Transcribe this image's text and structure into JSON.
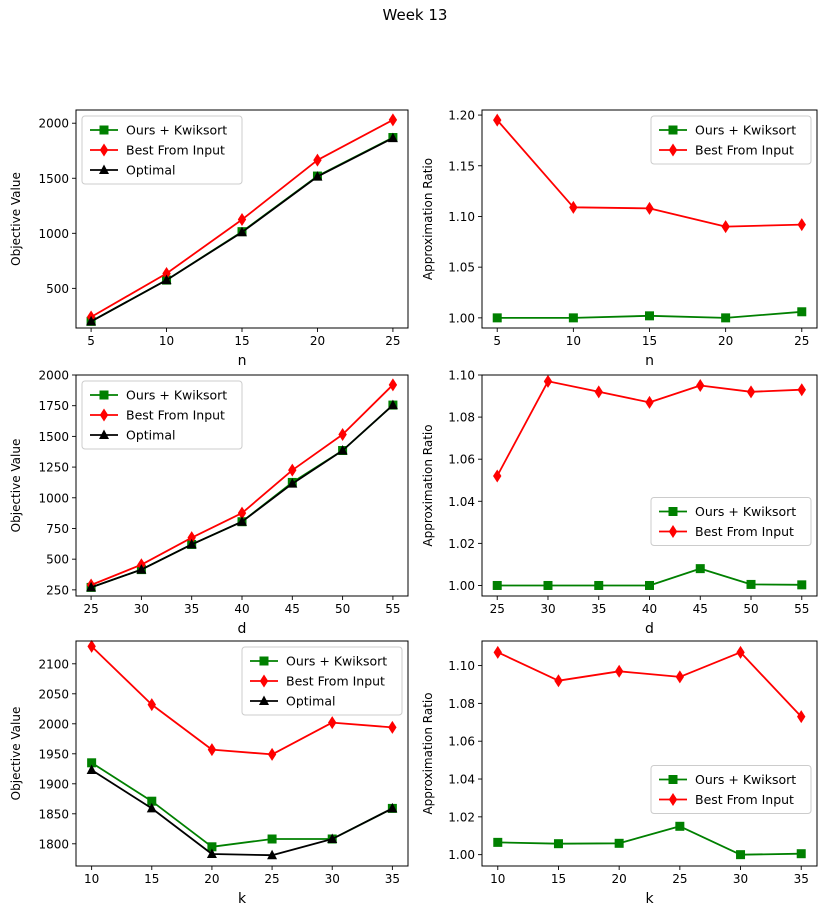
{
  "figure": {
    "title": "Week 13",
    "colors": {
      "ours": "#008000",
      "best": "#ff0000",
      "optimal": "#000000"
    }
  },
  "chart_data": [
    {
      "type": "line",
      "title": "",
      "xlabel": "n",
      "ylabel": "Objective Value",
      "x": [
        5,
        10,
        15,
        20,
        25
      ],
      "xticks": [
        5,
        10,
        15,
        20,
        25
      ],
      "ylim": [
        140,
        2120
      ],
      "yticks": [
        500,
        1000,
        1500,
        2000
      ],
      "xlim": [
        4,
        26
      ],
      "legend": "upper-left",
      "series": [
        {
          "name": "Ours + Kwiksort",
          "color": "#008000",
          "marker": "square",
          "values": [
            200,
            575,
            1015,
            1520,
            1870
          ]
        },
        {
          "name": "Best From Input",
          "color": "#ff0000",
          "marker": "diamond",
          "values": [
            240,
            635,
            1125,
            1665,
            2030
          ]
        },
        {
          "name": "Optimal",
          "color": "#000000",
          "marker": "triangle",
          "values": [
            200,
            575,
            1010,
            1515,
            1865
          ]
        }
      ]
    },
    {
      "type": "line",
      "title": "",
      "xlabel": "n",
      "ylabel": "Approximation Ratio",
      "x": [
        5,
        10,
        15,
        20,
        25
      ],
      "xticks": [
        5,
        10,
        15,
        20,
        25
      ],
      "ylim": [
        0.99,
        1.205
      ],
      "yticks": [
        "1.00",
        "1.05",
        "1.10",
        "1.15",
        "1.20"
      ],
      "xlim": [
        4,
        26
      ],
      "legend": "upper-right",
      "series": [
        {
          "name": "Ours + Kwiksort",
          "color": "#008000",
          "marker": "square",
          "values": [
            1.0,
            1.0,
            1.002,
            1.0,
            1.006
          ]
        },
        {
          "name": "Best From Input",
          "color": "#ff0000",
          "marker": "diamond",
          "values": [
            1.195,
            1.109,
            1.108,
            1.09,
            1.092
          ]
        }
      ]
    },
    {
      "type": "line",
      "title": "",
      "xlabel": "d",
      "ylabel": "Objective Value",
      "x": [
        25,
        30,
        35,
        40,
        45,
        50,
        55
      ],
      "xticks": [
        25,
        30,
        35,
        40,
        45,
        50,
        55
      ],
      "ylim": [
        200,
        2000
      ],
      "yticks": [
        250,
        500,
        750,
        1000,
        1250,
        1500,
        1750,
        2000
      ],
      "xlim": [
        23.5,
        56.5
      ],
      "legend": "upper-left",
      "series": [
        {
          "name": "Ours + Kwiksort",
          "color": "#008000",
          "marker": "square",
          "values": [
            270,
            415,
            620,
            805,
            1125,
            1385,
            1755
          ]
        },
        {
          "name": "Best From Input",
          "color": "#ff0000",
          "marker": "diamond",
          "values": [
            290,
            455,
            675,
            875,
            1225,
            1515,
            1920
          ]
        },
        {
          "name": "Optimal",
          "color": "#000000",
          "marker": "triangle",
          "values": [
            270,
            415,
            620,
            805,
            1115,
            1385,
            1755
          ]
        }
      ]
    },
    {
      "type": "line",
      "title": "",
      "xlabel": "d",
      "ylabel": "Approximation Ratio",
      "x": [
        25,
        30,
        35,
        40,
        45,
        50,
        55
      ],
      "xticks": [
        25,
        30,
        35,
        40,
        45,
        50,
        55
      ],
      "ylim": [
        0.995,
        1.1
      ],
      "yticks": [
        "1.00",
        "1.02",
        "1.04",
        "1.06",
        "1.08",
        "1.10"
      ],
      "xlim": [
        23.5,
        56.5
      ],
      "legend": "center-right",
      "series": [
        {
          "name": "Ours + Kwiksort",
          "color": "#008000",
          "marker": "square",
          "values": [
            1.0,
            1.0,
            1.0,
            1.0,
            1.008,
            1.0005,
            1.0003
          ]
        },
        {
          "name": "Best From Input",
          "color": "#ff0000",
          "marker": "diamond",
          "values": [
            1.052,
            1.097,
            1.092,
            1.087,
            1.095,
            1.092,
            1.093
          ]
        }
      ]
    },
    {
      "type": "line",
      "title": "",
      "xlabel": "k",
      "ylabel": "Objective Value",
      "x": [
        10,
        15,
        20,
        25,
        30,
        35
      ],
      "xticks": [
        10,
        15,
        20,
        25,
        30,
        35
      ],
      "ylim": [
        1763,
        2138
      ],
      "yticks": [
        1800,
        1850,
        1900,
        1950,
        2000,
        2050,
        2100
      ],
      "xlim": [
        8.7,
        36.3
      ],
      "legend": "upper-right",
      "series": [
        {
          "name": "Ours + Kwiksort",
          "color": "#008000",
          "marker": "square",
          "values": [
            1935,
            1871,
            1795,
            1808,
            1808,
            1859
          ]
        },
        {
          "name": "Best From Input",
          "color": "#ff0000",
          "marker": "diamond",
          "values": [
            2129,
            2032,
            1957,
            1949,
            2002,
            1994
          ]
        },
        {
          "name": "Optimal",
          "color": "#000000",
          "marker": "triangle",
          "values": [
            1923,
            1859,
            1783,
            1781,
            1808,
            1859
          ]
        }
      ]
    },
    {
      "type": "line",
      "title": "",
      "xlabel": "k",
      "ylabel": "Approximation Ratio",
      "x": [
        10,
        15,
        20,
        25,
        30,
        35
      ],
      "xticks": [
        10,
        15,
        20,
        25,
        30,
        35
      ],
      "ylim": [
        0.994,
        1.113
      ],
      "yticks": [
        "1.00",
        "1.02",
        "1.04",
        "1.06",
        "1.08",
        "1.10"
      ],
      "xlim": [
        8.7,
        36.3
      ],
      "legend": "center-right",
      "series": [
        {
          "name": "Ours + Kwiksort",
          "color": "#008000",
          "marker": "square",
          "values": [
            1.0065,
            1.0058,
            1.006,
            1.015,
            1.0,
            1.0005
          ]
        },
        {
          "name": "Best From Input",
          "color": "#ff0000",
          "marker": "diamond",
          "values": [
            1.107,
            1.092,
            1.097,
            1.094,
            1.107,
            1.073
          ]
        }
      ]
    }
  ]
}
